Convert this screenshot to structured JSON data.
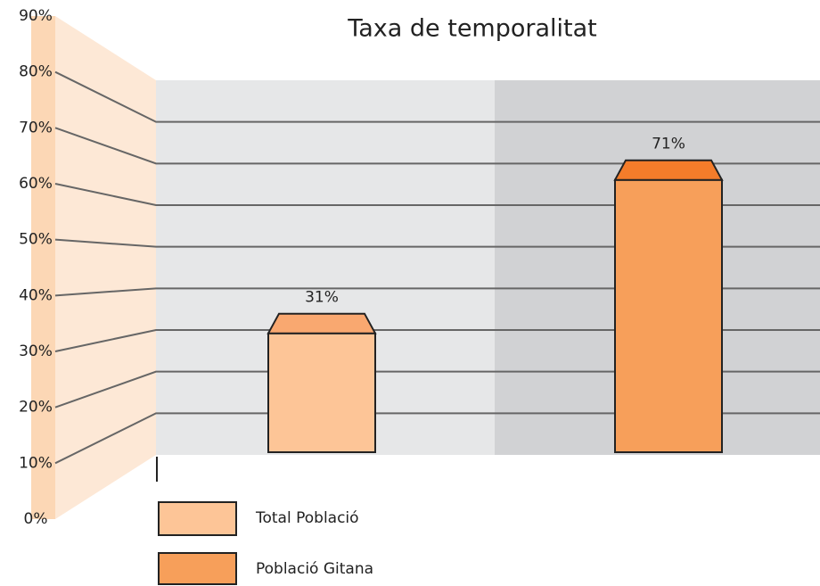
{
  "chart_data": {
    "type": "bar",
    "title": "Taxa de temporalitat",
    "ylim": [
      0,
      90
    ],
    "yticks": [
      {
        "value": 0,
        "label": "0%"
      },
      {
        "value": 10,
        "label": "10%"
      },
      {
        "value": 20,
        "label": "20%"
      },
      {
        "value": 30,
        "label": "30%"
      },
      {
        "value": 40,
        "label": "40%"
      },
      {
        "value": 50,
        "label": "50%"
      },
      {
        "value": 60,
        "label": "60%"
      },
      {
        "value": 70,
        "label": "70%"
      },
      {
        "value": 80,
        "label": "80%"
      },
      {
        "value": 90,
        "label": "90%"
      }
    ],
    "grid": true,
    "series": [
      {
        "name": "Total Població",
        "color": "#fdc597",
        "top_color": "#f9a870",
        "values": [
          31
        ],
        "value_labels": [
          "31%"
        ]
      },
      {
        "name": "Població Gitana",
        "color": "#f79f5a",
        "top_color": "#f47c2a",
        "values": [
          71
        ],
        "value_labels": [
          "71%"
        ]
      }
    ]
  }
}
